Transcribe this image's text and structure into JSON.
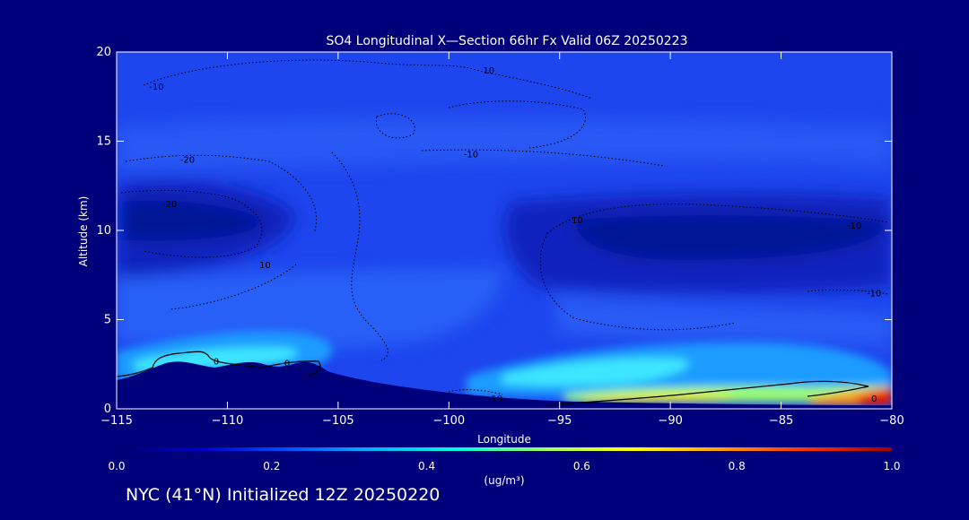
{
  "caption": "NYC (41°N) Initialized 12Z 20250220",
  "chart_data": {
    "type": "heatmap",
    "title": "SO4 Longitudinal X—Section 66hr  Fx Valid 06Z 20250223",
    "xlabel": "Longitude",
    "ylabel": "Altitude (km)",
    "xlim": [
      -115,
      -80
    ],
    "ylim": [
      0,
      20
    ],
    "x_ticks": [
      -115,
      -110,
      -105,
      -100,
      -95,
      -90,
      -85,
      -80
    ],
    "y_ticks": [
      0,
      5,
      10,
      15,
      20
    ],
    "grid": false,
    "colorbar": {
      "min": 0.0,
      "max": 1.0,
      "ticks": [
        "0.0",
        "0.2",
        "0.4",
        "0.6",
        "0.8",
        "1.0"
      ],
      "unit": "(ug/m³)",
      "colors": [
        "#00006e",
        "#0000c8",
        "#0050ff",
        "#00b4ff",
        "#00ffe0",
        "#a0ff60",
        "#ffff00",
        "#ffa000",
        "#ff3000",
        "#a00000"
      ]
    },
    "colors": {
      "background": "#00007a",
      "plot_fill": "#1e46ee",
      "terrain": "#00007a",
      "contours": "#000000"
    },
    "contour_labels": [
      {
        "lon": -113.2,
        "alt": 18.1,
        "text": "-10"
      },
      {
        "lon": -98.2,
        "alt": 19.0,
        "text": "10"
      },
      {
        "lon": -111.8,
        "alt": 14.0,
        "text": "-20"
      },
      {
        "lon": -99.0,
        "alt": 14.3,
        "text": "-10"
      },
      {
        "lon": -112.6,
        "alt": 11.5,
        "text": "-20"
      },
      {
        "lon": -94.2,
        "alt": 10.6,
        "text": "10"
      },
      {
        "lon": -81.7,
        "alt": 10.3,
        "text": "-10"
      },
      {
        "lon": -108.3,
        "alt": 8.1,
        "text": "10"
      },
      {
        "lon": -80.8,
        "alt": 6.5,
        "text": "-10"
      },
      {
        "lon": -110.5,
        "alt": 2.7,
        "text": "0"
      },
      {
        "lon": -107.3,
        "alt": 2.6,
        "text": "0"
      },
      {
        "lon": -97.9,
        "alt": 0.6,
        "text": "-10"
      },
      {
        "lon": -80.8,
        "alt": 0.6,
        "text": "0"
      }
    ]
  }
}
